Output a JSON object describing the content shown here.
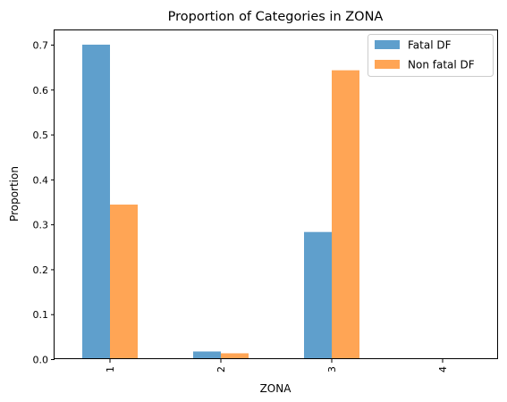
{
  "chart_data": {
    "type": "bar",
    "title": "Proportion of Categories in ZONA",
    "xlabel": "ZONA",
    "ylabel": "Proportion",
    "categories": [
      "1",
      "2",
      "3",
      "4"
    ],
    "series": [
      {
        "name": "Fatal DF",
        "color": "#5f9fcc",
        "values": [
          0.7,
          0.017,
          0.283,
          0.0
        ]
      },
      {
        "name": "Non fatal DF",
        "color": "#ffa555",
        "values": [
          0.344,
          0.013,
          0.643,
          0.0
        ]
      }
    ],
    "ylim": [
      0,
      0.7
    ],
    "yticks": [
      "0.0",
      "0.1",
      "0.2",
      "0.3",
      "0.4",
      "0.5",
      "0.6",
      "0.7"
    ],
    "legend_position": "top-right",
    "grid": false
  }
}
